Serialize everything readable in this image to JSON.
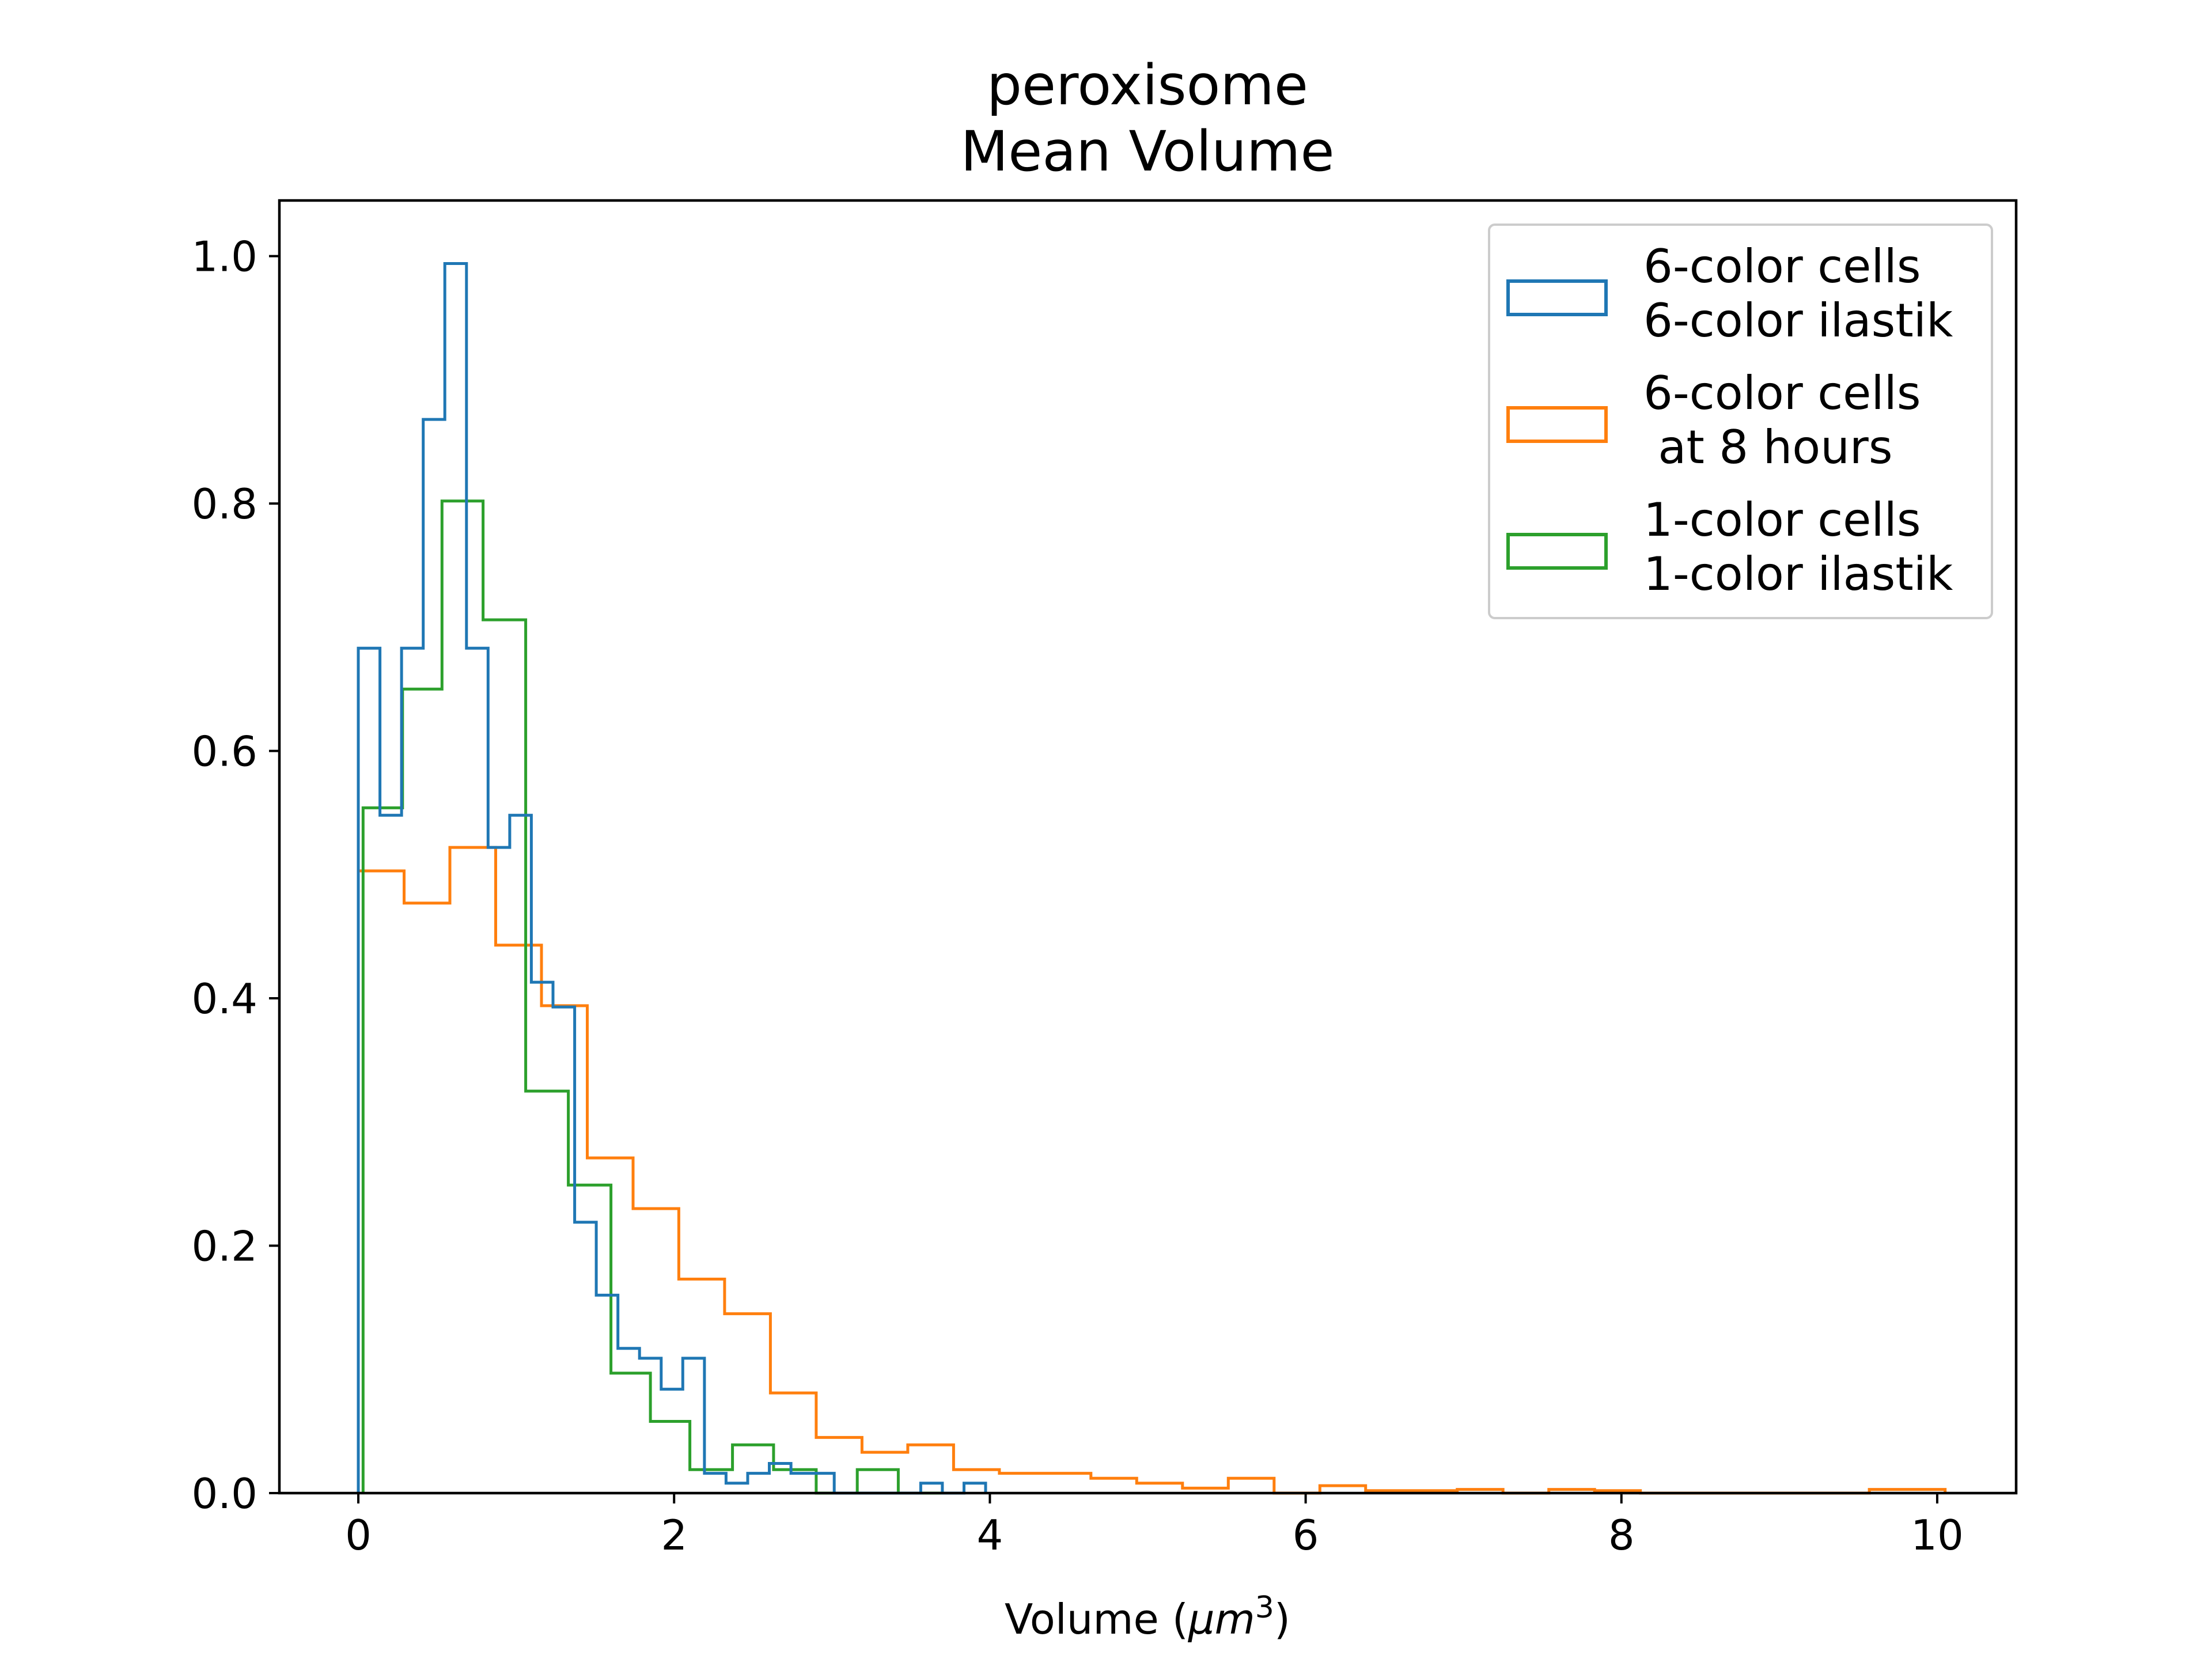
{
  "chart_data": {
    "type": "histogram",
    "title": [
      "peroxisome",
      "Mean Volume"
    ],
    "xlabel_main": "Volume (",
    "xlabel_unit": "μm",
    "xlabel_exp": "3",
    "xlabel_close": ")",
    "xlim": [
      -0.5,
      10.5
    ],
    "ylim": [
      0.0,
      1.045
    ],
    "xticks": [
      0,
      2,
      4,
      6,
      8,
      10
    ],
    "xtick_labels": [
      "0",
      "2",
      "4",
      "6",
      "8",
      "10"
    ],
    "yticks": [
      0.0,
      0.2,
      0.4,
      0.6,
      0.8,
      1.0
    ],
    "ytick_labels": [
      "0.0",
      "0.2",
      "0.4",
      "0.6",
      "0.8",
      "1.0"
    ],
    "grid": false,
    "legend_position": "top-right",
    "series": [
      {
        "name": "6-color cells\n6-color ilastik",
        "color": "#1f77b4",
        "edges": [
          0,
          0.137,
          0.274,
          0.411,
          0.548,
          0.685,
          0.822,
          0.959,
          1.096,
          1.233,
          1.37,
          1.507,
          1.644,
          1.781,
          1.918,
          2.055,
          2.192,
          2.329,
          2.466,
          2.603,
          2.74,
          2.877,
          3.014,
          3.151,
          3.288,
          3.425,
          3.562,
          3.699,
          3.836,
          3.973
        ],
        "values": [
          0.683,
          0.548,
          0.683,
          0.868,
          0.994,
          0.683,
          0.522,
          0.548,
          0.413,
          0.393,
          0.219,
          0.16,
          0.117,
          0.109,
          0.084,
          0.109,
          0.016,
          0.008,
          0.016,
          0.024,
          0.016,
          0.016,
          0.0,
          0.0,
          0.0,
          0.0,
          0.008,
          0.0,
          0.008
        ]
      },
      {
        "name": "6-color cells\n at 8 hours",
        "color": "#ff7f0e",
        "edges": [
          0.0,
          0.29,
          0.58,
          0.87,
          1.16,
          1.45,
          1.74,
          2.03,
          2.32,
          2.61,
          2.9,
          3.19,
          3.48,
          3.77,
          4.06,
          4.35,
          4.64,
          4.93,
          5.22,
          5.51,
          5.8,
          6.09,
          6.38,
          6.67,
          6.96,
          7.25,
          7.54,
          7.83,
          8.12,
          8.41,
          8.7,
          8.99,
          9.28,
          9.57,
          9.86,
          10.05
        ],
        "values": [
          0.503,
          0.477,
          0.522,
          0.443,
          0.394,
          0.271,
          0.23,
          0.173,
          0.145,
          0.081,
          0.045,
          0.033,
          0.039,
          0.019,
          0.016,
          0.016,
          0.012,
          0.008,
          0.004,
          0.012,
          0.0,
          0.006,
          0.002,
          0.002,
          0.003,
          0.0,
          0.003,
          0.002,
          0.0,
          0.0,
          0.0,
          0.0,
          0.0,
          0.003,
          0.003
        ]
      },
      {
        "name": "1-color cells\n1-color ilastik",
        "color": "#2ca02c",
        "edges": [
          0.03,
          0.28,
          0.53,
          0.79,
          1.06,
          1.33,
          1.6,
          1.85,
          2.1,
          2.37,
          2.63,
          2.9,
          3.16,
          3.42,
          3.69
        ],
        "values": [
          0.554,
          0.65,
          0.802,
          0.706,
          0.325,
          0.249,
          0.097,
          0.058,
          0.019,
          0.039,
          0.019,
          0.0,
          0.019,
          0.0
        ]
      }
    ]
  }
}
